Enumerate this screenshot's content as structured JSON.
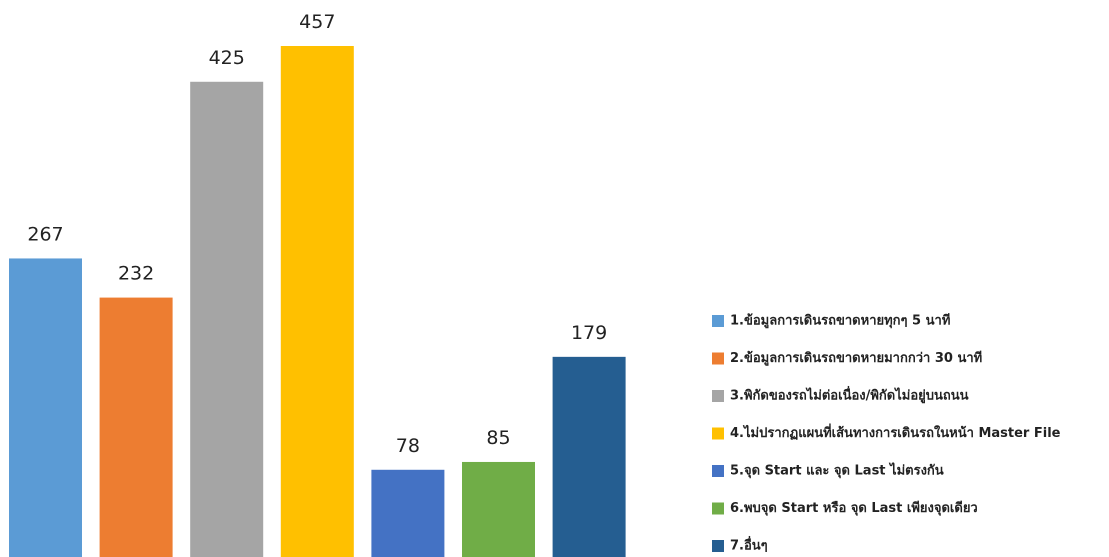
{
  "chart_data": {
    "type": "bar",
    "categories": [
      "1.ข้อมูลการเดินรถขาดหายทุกๆ 5 นาที",
      "2.ข้อมูลการเดินรถขาดหายมากกว่า 30 นาที",
      "3.พิกัดของรถไม่ต่อเนื่อง/พิกัดไม่อยู่บนถนน",
      "4.ไม่ปรากฏแผนที่เส้นทางการเดินรถในหน้า Master File",
      "5.จุด Start และ จุด Last ไม่ตรงกัน",
      "6.พบจุด Start หรือ จุด Last เพียงจุดเดียว",
      "7.อื่นๆ"
    ],
    "values": [
      267,
      232,
      425,
      457,
      78,
      85,
      179
    ],
    "colors": [
      "#5b9bd5",
      "#ed7d31",
      "#a5a5a5",
      "#ffc000",
      "#4472c4",
      "#70ad47",
      "#255e91"
    ],
    "legend": "right"
  }
}
